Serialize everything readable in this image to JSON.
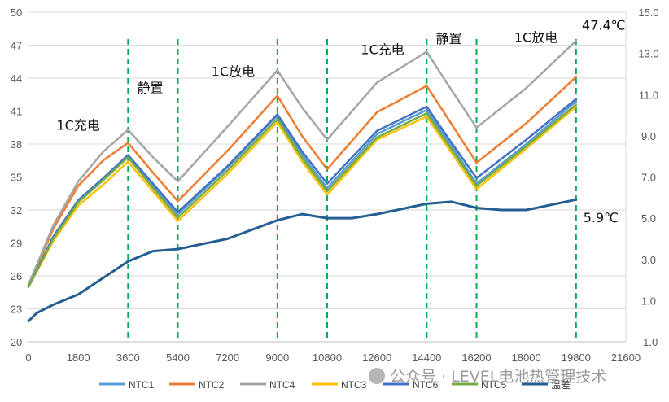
{
  "chart_data": {
    "type": "line",
    "x_axis": {
      "min": 0,
      "max": 21600,
      "ticks": [
        0,
        1800,
        3600,
        5400,
        7200,
        9000,
        10800,
        12600,
        14400,
        16200,
        18000,
        19800,
        21600
      ]
    },
    "y_axis_left": {
      "min": 20,
      "max": 50,
      "ticks": [
        20,
        23,
        26,
        29,
        32,
        35,
        38,
        41,
        44,
        47,
        50
      ]
    },
    "y_axis_right": {
      "min": -1.0,
      "max": 15.0,
      "ticks": [
        "-1.0",
        "1.0",
        "3.0",
        "5.0",
        "7.0",
        "9.0",
        "11.0",
        "13.0",
        "15.0"
      ]
    },
    "phase_boundaries": [
      3600,
      5400,
      9000,
      10800,
      14400,
      16200,
      19800
    ],
    "annotations": [
      {
        "text": "1C充电",
        "x": 1800,
        "y": 39.3
      },
      {
        "text": "静置",
        "x": 4400,
        "y": 42.7
      },
      {
        "text": "1C放电",
        "x": 7400,
        "y": 44.2
      },
      {
        "text": "1C充电",
        "x": 12800,
        "y": 46.2
      },
      {
        "text": "静置",
        "x": 15200,
        "y": 47.2
      },
      {
        "text": "1C放电",
        "x": 18350,
        "y": 47.3
      },
      {
        "text": "47.4℃",
        "x": 20800,
        "y": 48.4
      },
      {
        "text": "5.9℃",
        "x": 20700,
        "y": 30.9
      }
    ],
    "series": [
      {
        "name": "NTC1",
        "axis": "left",
        "color": "#5b9bd5",
        "points": [
          [
            0,
            25.0
          ],
          [
            900,
            29.5
          ],
          [
            1800,
            32.8
          ],
          [
            2700,
            34.8
          ],
          [
            3600,
            36.9
          ],
          [
            4500,
            34.2
          ],
          [
            5400,
            31.6
          ],
          [
            7200,
            35.9
          ],
          [
            9000,
            40.6
          ],
          [
            9900,
            37.0
          ],
          [
            10800,
            34.0
          ],
          [
            12600,
            38.9
          ],
          [
            14400,
            41.1
          ],
          [
            15300,
            37.8
          ],
          [
            16200,
            34.4
          ],
          [
            18000,
            38.0
          ],
          [
            19800,
            41.9
          ]
        ]
      },
      {
        "name": "NTC2",
        "axis": "left",
        "color": "#ed7d31",
        "points": [
          [
            0,
            25.1
          ],
          [
            900,
            30.3
          ],
          [
            1800,
            34.2
          ],
          [
            2700,
            36.5
          ],
          [
            3600,
            38.1
          ],
          [
            4500,
            35.4
          ],
          [
            5400,
            32.8
          ],
          [
            7200,
            37.4
          ],
          [
            9000,
            42.4
          ],
          [
            9900,
            38.7
          ],
          [
            10800,
            35.7
          ],
          [
            12600,
            40.9
          ],
          [
            14400,
            43.3
          ],
          [
            15300,
            39.8
          ],
          [
            16200,
            36.3
          ],
          [
            18000,
            39.9
          ],
          [
            19800,
            44.1
          ]
        ]
      },
      {
        "name": "NTC4",
        "axis": "left",
        "color": "#a5a5a5",
        "points": [
          [
            0,
            25.2
          ],
          [
            900,
            30.6
          ],
          [
            1800,
            34.6
          ],
          [
            2700,
            37.3
          ],
          [
            3600,
            39.3
          ],
          [
            4500,
            36.8
          ],
          [
            5400,
            34.6
          ],
          [
            7200,
            39.6
          ],
          [
            9000,
            44.7
          ],
          [
            9900,
            41.3
          ],
          [
            10800,
            38.4
          ],
          [
            12600,
            43.6
          ],
          [
            14400,
            46.4
          ],
          [
            15300,
            42.9
          ],
          [
            16200,
            39.5
          ],
          [
            18000,
            43.1
          ],
          [
            19800,
            47.4
          ]
        ]
      },
      {
        "name": "NTC3",
        "axis": "left",
        "color": "#ffc000",
        "points": [
          [
            0,
            25.0
          ],
          [
            900,
            29.2
          ],
          [
            1800,
            32.4
          ],
          [
            2700,
            34.3
          ],
          [
            3600,
            36.4
          ],
          [
            4500,
            33.7
          ],
          [
            5400,
            31.0
          ],
          [
            7200,
            35.3
          ],
          [
            9000,
            40.0
          ],
          [
            9900,
            36.4
          ],
          [
            10800,
            33.4
          ],
          [
            12600,
            38.4
          ],
          [
            14400,
            40.5
          ],
          [
            15300,
            37.2
          ],
          [
            16200,
            33.9
          ],
          [
            18000,
            37.6
          ],
          [
            19800,
            41.4
          ]
        ]
      },
      {
        "name": "NTC6",
        "axis": "left",
        "color": "#4472c4",
        "points": [
          [
            0,
            25.0
          ],
          [
            900,
            29.6
          ],
          [
            1800,
            32.9
          ],
          [
            2700,
            34.9
          ],
          [
            3600,
            37.0
          ],
          [
            4500,
            34.4
          ],
          [
            5400,
            31.8
          ],
          [
            7200,
            36.0
          ],
          [
            9000,
            40.7
          ],
          [
            9900,
            37.3
          ],
          [
            10800,
            34.4
          ],
          [
            12600,
            39.2
          ],
          [
            14400,
            41.4
          ],
          [
            15300,
            38.1
          ],
          [
            16200,
            34.9
          ],
          [
            18000,
            38.4
          ],
          [
            19800,
            42.1
          ]
        ]
      },
      {
        "name": "NTC5",
        "axis": "left",
        "color": "#70ad47",
        "points": [
          [
            0,
            25.0
          ],
          [
            900,
            29.4
          ],
          [
            1800,
            32.7
          ],
          [
            2700,
            34.7
          ],
          [
            3600,
            36.8
          ],
          [
            4500,
            34.0
          ],
          [
            5400,
            31.3
          ],
          [
            7200,
            35.6
          ],
          [
            9000,
            40.3
          ],
          [
            9900,
            36.7
          ],
          [
            10800,
            33.7
          ],
          [
            12600,
            38.6
          ],
          [
            14400,
            40.8
          ],
          [
            15300,
            37.5
          ],
          [
            16200,
            34.2
          ],
          [
            18000,
            37.8
          ],
          [
            19800,
            41.6
          ]
        ]
      },
      {
        "name": "温差",
        "axis": "right",
        "color": "#255e91",
        "points": [
          [
            0,
            0.0
          ],
          [
            300,
            0.4
          ],
          [
            900,
            0.8
          ],
          [
            1800,
            1.3
          ],
          [
            2700,
            2.1
          ],
          [
            3600,
            2.9
          ],
          [
            4500,
            3.4
          ],
          [
            5400,
            3.5
          ],
          [
            7200,
            4.0
          ],
          [
            9000,
            4.9
          ],
          [
            9900,
            5.2
          ],
          [
            10800,
            5.0
          ],
          [
            11700,
            5.0
          ],
          [
            12600,
            5.2
          ],
          [
            14400,
            5.7
          ],
          [
            15300,
            5.8
          ],
          [
            16200,
            5.5
          ],
          [
            17100,
            5.4
          ],
          [
            18000,
            5.4
          ],
          [
            19800,
            5.9
          ]
        ]
      }
    ]
  }
}
